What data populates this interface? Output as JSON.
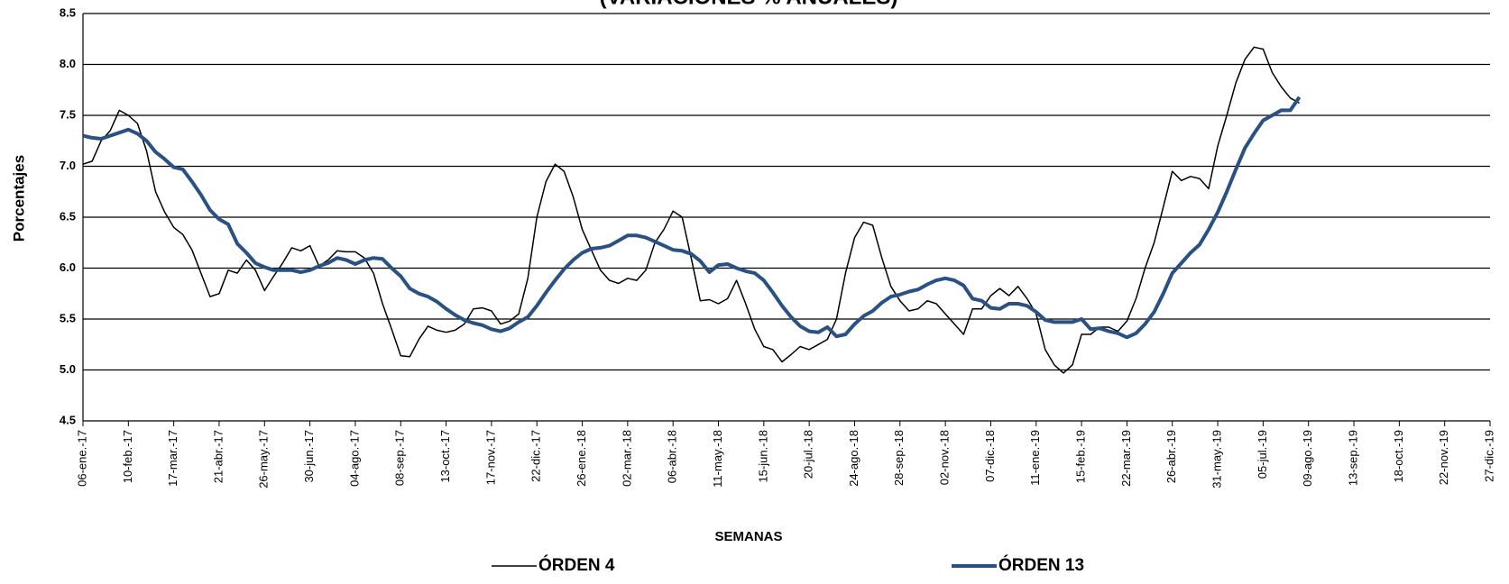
{
  "chart_data": {
    "type": "line",
    "title": "(VARIACIONES % ANUALES)",
    "x_label": "SEMANAS",
    "y_label": "Porcentajes",
    "categories": [
      "06-ene.-17",
      null,
      null,
      null,
      null,
      "10-feb.-17",
      null,
      null,
      null,
      null,
      "17-mar.-17",
      null,
      null,
      null,
      null,
      "21-abr.-17",
      null,
      null,
      null,
      null,
      "26-may.-17",
      null,
      null,
      null,
      null,
      "30-jun.-17",
      null,
      null,
      null,
      null,
      "04-ago.-17",
      null,
      null,
      null,
      null,
      "08-sep.-17",
      null,
      null,
      null,
      null,
      "13-oct.-17",
      null,
      null,
      null,
      null,
      "17-nov.-17",
      null,
      null,
      null,
      null,
      "22-dic.-17",
      null,
      null,
      null,
      null,
      "26-ene.-18",
      null,
      null,
      null,
      null,
      "02-mar.-18",
      null,
      null,
      null,
      null,
      "06-abr.-18",
      null,
      null,
      null,
      null,
      "11-may.-18",
      null,
      null,
      null,
      null,
      "15-jun.-18",
      null,
      null,
      null,
      null,
      "20-jul.-18",
      null,
      null,
      null,
      null,
      "24-ago.-18",
      null,
      null,
      null,
      null,
      "28-sep.-18",
      null,
      null,
      null,
      null,
      "02-nov.-18",
      null,
      null,
      null,
      null,
      "07-dic.-18",
      null,
      null,
      null,
      null,
      "11-ene.-19",
      null,
      null,
      null,
      null,
      "15-feb.-19",
      null,
      null,
      null,
      null,
      "22-mar.-19",
      null,
      null,
      null,
      null,
      "26-abr.-19",
      null,
      null,
      null,
      null,
      "31-may.-19",
      null,
      null,
      null,
      null,
      "05-jul.-19",
      null,
      null,
      null,
      null,
      "09-ago.-19",
      null,
      null,
      null,
      null,
      "13-sep.-19",
      null,
      null,
      null,
      null,
      "18-oct.-19",
      null,
      null,
      null,
      null,
      "22-nov.-19",
      null,
      null,
      null,
      null,
      "27-dic.-19"
    ],
    "series": [
      {
        "name": "ÓRDEN 4",
        "color": "#000000",
        "width": 1.5,
        "values": [
          7.02,
          7.05,
          7.25,
          7.35,
          7.55,
          7.5,
          7.42,
          7.15,
          6.75,
          6.55,
          6.4,
          6.33,
          6.18,
          5.95,
          5.72,
          5.75,
          5.98,
          5.95,
          6.08,
          5.98,
          5.78,
          5.92,
          6.05,
          6.2,
          6.17,
          6.22,
          6.02,
          6.08,
          6.17,
          6.16,
          6.16,
          6.1,
          5.95,
          5.65,
          5.4,
          5.14,
          5.13,
          5.3,
          5.43,
          5.39,
          5.37,
          5.39,
          5.45,
          5.6,
          5.61,
          5.58,
          5.45,
          5.48,
          5.55,
          5.9,
          6.5,
          6.85,
          7.02,
          6.95,
          6.7,
          6.38,
          6.18,
          5.98,
          5.88,
          5.85,
          5.9,
          5.88,
          5.98,
          6.25,
          6.38,
          6.56,
          6.5,
          6.1,
          5.68,
          5.69,
          5.65,
          5.7,
          5.88,
          5.65,
          5.4,
          5.23,
          5.2,
          5.08,
          5.15,
          5.23,
          5.2,
          5.25,
          5.3,
          5.5,
          5.95,
          6.3,
          6.45,
          6.42,
          6.1,
          5.82,
          5.68,
          5.58,
          5.6,
          5.68,
          5.65,
          5.55,
          5.45,
          5.35,
          5.6,
          5.6,
          5.73,
          5.8,
          5.73,
          5.82,
          5.7,
          5.55,
          5.2,
          5.05,
          4.97,
          5.05,
          5.35,
          5.35,
          5.42,
          5.42,
          5.38,
          5.48,
          5.7,
          6.0,
          6.25,
          6.6,
          6.95,
          6.86,
          6.9,
          6.88,
          6.78,
          7.2,
          7.5,
          7.82,
          8.05,
          8.17,
          8.15,
          7.92,
          7.78,
          7.67,
          7.62,
          null,
          null,
          null,
          null,
          null,
          null,
          null,
          null,
          null,
          null,
          null,
          null,
          null,
          null,
          null,
          null,
          null,
          null,
          null,
          null,
          null
        ]
      },
      {
        "name": "ÓRDEN 13",
        "color": "#2a5183",
        "width": 4,
        "values": [
          7.3,
          7.28,
          7.27,
          7.3,
          7.33,
          7.36,
          7.32,
          7.25,
          7.14,
          7.07,
          6.99,
          6.97,
          6.85,
          6.72,
          6.57,
          6.48,
          6.43,
          6.24,
          6.15,
          6.05,
          6.01,
          5.98,
          5.98,
          5.98,
          5.96,
          5.98,
          6.02,
          6.05,
          6.1,
          6.08,
          6.04,
          6.08,
          6.1,
          6.09,
          6.0,
          5.92,
          5.8,
          5.75,
          5.72,
          5.67,
          5.6,
          5.54,
          5.49,
          5.46,
          5.44,
          5.4,
          5.38,
          5.41,
          5.47,
          5.52,
          5.63,
          5.76,
          5.88,
          5.99,
          6.08,
          6.15,
          6.19,
          6.2,
          6.22,
          6.27,
          6.32,
          6.32,
          6.3,
          6.26,
          6.22,
          6.18,
          6.17,
          6.14,
          6.07,
          5.96,
          6.03,
          6.04,
          6.0,
          5.97,
          5.95,
          5.88,
          5.76,
          5.63,
          5.52,
          5.43,
          5.38,
          5.37,
          5.42,
          5.33,
          5.35,
          5.45,
          5.53,
          5.58,
          5.66,
          5.72,
          5.74,
          5.77,
          5.79,
          5.84,
          5.88,
          5.9,
          5.88,
          5.83,
          5.7,
          5.68,
          5.61,
          5.6,
          5.65,
          5.65,
          5.63,
          5.57,
          5.49,
          5.47,
          5.47,
          5.47,
          5.5,
          5.4,
          5.41,
          5.38,
          5.36,
          5.32,
          5.36,
          5.45,
          5.57,
          5.75,
          5.95,
          6.05,
          6.15,
          6.23,
          6.38,
          6.55,
          6.75,
          6.97,
          7.18,
          7.32,
          7.45,
          7.5,
          7.55,
          7.55,
          7.68,
          null,
          null,
          null,
          null,
          null,
          null,
          null,
          null,
          null,
          null,
          null,
          null,
          null,
          null,
          null,
          null,
          null,
          null,
          null,
          null,
          null
        ]
      }
    ],
    "ylim": [
      4.5,
      8.5
    ],
    "yticks": [
      4.5,
      {
        "value": 5,
        "label": "5.0"
      },
      5.5,
      {
        "value": 6,
        "label": "6.0"
      },
      6.5,
      {
        "value": 7,
        "label": "7.0"
      },
      7.5,
      {
        "value": 8,
        "label": "8.0"
      },
      8.5
    ],
    "grid": true,
    "legend": "bottom"
  }
}
